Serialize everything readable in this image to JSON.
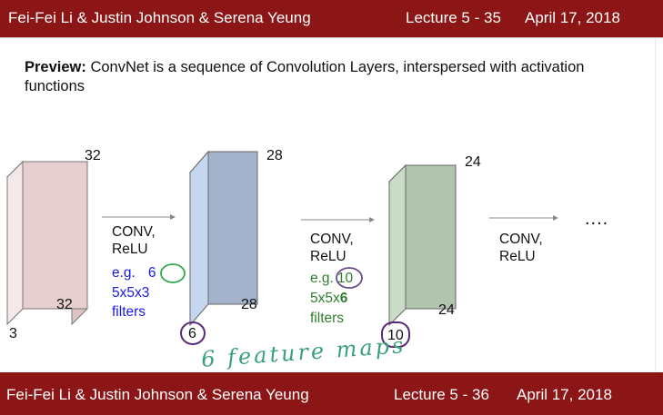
{
  "header": {
    "authors": "Fei-Fei Li & Justin Johnson & Serena Yeung",
    "lecture": "Lecture 5 - 35",
    "date": "April 17, 2018"
  },
  "footer": {
    "authors": "Fei-Fei Li & Justin Johnson & Serena Yeung",
    "lecture": "Lecture 5 - 36",
    "date": "April 17, 2018"
  },
  "preview": {
    "bold": "Preview:",
    "text": " ConvNet is a sequence of Convolution Layers, interspersed with activation functions"
  },
  "volumes": [
    {
      "width": "32",
      "height": "32",
      "depth": "3",
      "color": "#e8cfcf"
    },
    {
      "width": "28",
      "height": "28",
      "depth": "6",
      "color": "#a9b5cf"
    },
    {
      "width": "24",
      "height": "24",
      "depth": "10",
      "color": "#b0c4b0"
    }
  ],
  "steps": [
    {
      "op": "CONV,",
      "act": "ReLU",
      "eg": "e.g.",
      "num": "6",
      "filter": "5x5x3",
      "filters_word": "filters",
      "color": "#1a1ae6",
      "circle_color": "#2ea84a"
    },
    {
      "op": "CONV,",
      "act": "ReLU",
      "eg": "e.g.",
      "num": "10",
      "filter_prefix": "5x5x",
      "filter_bold": "6",
      "filters_word": "filters",
      "color": "#2f7d2f",
      "circle_color": "#6a4a8c"
    },
    {
      "op": "CONV,",
      "act": "ReLU"
    }
  ],
  "ellipsis": "....",
  "annotation": {
    "text": "6 feature maps",
    "color": "#3aa07a",
    "circle_color": "#5a2a7a"
  }
}
